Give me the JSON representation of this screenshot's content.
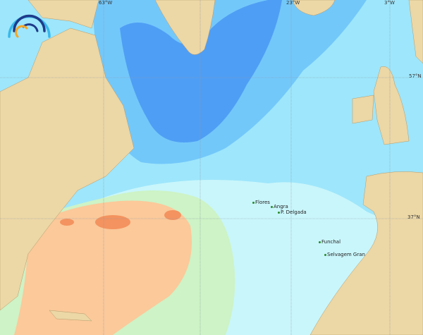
{
  "map": {
    "grid_labels": {
      "lon": [
        "63°W",
        "23°W",
        "3°W"
      ],
      "lat": [
        "57°N",
        "37°N"
      ]
    },
    "places": [
      "Flores",
      "Angra",
      "P. Delgada",
      "Funchal",
      "Selvagem Gran"
    ],
    "colors": {
      "land": "#ecd7a6",
      "deep_blue": "#4f9ef5",
      "mid_blue": "#73c8fa",
      "light_blue": "#9ee6fb",
      "pale": "#cdf7fc",
      "green": "#cdf3c6",
      "orange": "#fbc99a",
      "red": "#f4935f",
      "logo_dark": "#1f3a8a",
      "logo_light": "#38b8ec",
      "logo_orange": "#f5a623"
    },
    "logo": "wave-arc-logo"
  }
}
